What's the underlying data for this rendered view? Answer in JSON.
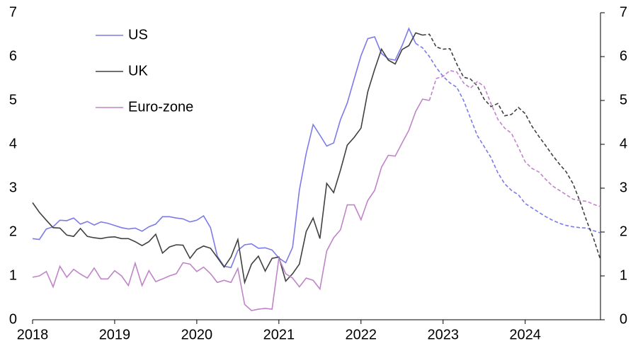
{
  "chart_data": {
    "type": "line",
    "x": [
      2018,
      2018.083,
      2018.167,
      2018.25,
      2018.333,
      2018.417,
      2018.5,
      2018.583,
      2018.667,
      2018.75,
      2018.833,
      2018.917,
      2019,
      2019.083,
      2019.167,
      2019.25,
      2019.333,
      2019.417,
      2019.5,
      2019.583,
      2019.667,
      2019.75,
      2019.833,
      2019.917,
      2020,
      2020.083,
      2020.167,
      2020.25,
      2020.333,
      2020.417,
      2020.5,
      2020.583,
      2020.667,
      2020.75,
      2020.833,
      2020.917,
      2021,
      2021.083,
      2021.167,
      2021.25,
      2021.333,
      2021.417,
      2021.5,
      2021.583,
      2021.667,
      2021.75,
      2021.833,
      2021.917,
      2022,
      2022.083,
      2022.167,
      2022.25,
      2022.333,
      2022.417,
      2022.5,
      2022.583,
      2022.667,
      2022.75,
      2022.833,
      2022.917,
      2023,
      2023.083,
      2023.167,
      2023.25,
      2023.333,
      2023.417,
      2023.5,
      2023.583,
      2023.667,
      2023.75,
      2023.833,
      2023.917,
      2024,
      2024.083,
      2024.167,
      2024.25,
      2024.333,
      2024.417,
      2024.5,
      2024.583,
      2024.667,
      2024.75,
      2024.833,
      2024.917
    ],
    "series": [
      {
        "name": "US",
        "color": "#7b7bea",
        "forecast_from": 2022.667,
        "values": [
          1.85,
          1.83,
          2.07,
          2.12,
          2.27,
          2.26,
          2.32,
          2.18,
          2.24,
          2.16,
          2.23,
          2.2,
          2.15,
          2.1,
          2.07,
          2.09,
          2.02,
          2.12,
          2.18,
          2.35,
          2.35,
          2.32,
          2.3,
          2.23,
          2.27,
          2.37,
          2.1,
          1.45,
          1.22,
          1.19,
          1.58,
          1.71,
          1.73,
          1.63,
          1.64,
          1.59,
          1.41,
          1.3,
          1.65,
          2.96,
          3.79,
          4.45,
          4.21,
          3.96,
          4.03,
          4.56,
          4.94,
          5.49,
          6.02,
          6.41,
          6.45,
          6.07,
          5.95,
          5.92,
          6.25,
          6.64,
          6.3,
          6.2,
          6.0,
          5.75,
          5.55,
          5.4,
          5.3,
          5.0,
          4.6,
          4.2,
          3.95,
          3.7,
          3.35,
          3.1,
          2.95,
          2.85,
          2.65,
          2.55,
          2.45,
          2.35,
          2.27,
          2.2,
          2.15,
          2.12,
          2.1,
          2.09,
          2.03,
          1.98
        ]
      },
      {
        "name": "UK",
        "color": "#404040",
        "forecast_from": 2022.75,
        "values": [
          2.67,
          2.45,
          2.27,
          2.1,
          2.09,
          1.93,
          1.9,
          2.08,
          1.9,
          1.87,
          1.85,
          1.88,
          1.89,
          1.85,
          1.85,
          1.78,
          1.69,
          1.78,
          1.95,
          1.52,
          1.66,
          1.71,
          1.7,
          1.4,
          1.6,
          1.68,
          1.63,
          1.42,
          1.2,
          1.43,
          1.83,
          0.85,
          1.27,
          1.45,
          1.11,
          1.4,
          1.43,
          0.88,
          1.05,
          1.27,
          2.01,
          2.32,
          1.85,
          3.11,
          2.9,
          3.41,
          3.98,
          4.16,
          4.37,
          5.2,
          5.71,
          6.17,
          5.92,
          5.83,
          6.16,
          6.25,
          6.54,
          6.49,
          6.51,
          6.22,
          6.17,
          6.18,
          5.83,
          5.53,
          5.49,
          5.33,
          5.03,
          4.86,
          4.93,
          4.65,
          4.68,
          4.84,
          4.7,
          4.41,
          4.18,
          3.97,
          3.75,
          3.55,
          3.37,
          3.1,
          2.7,
          2.25,
          1.85,
          1.37
        ]
      },
      {
        "name": "Euro-zone",
        "color": "#c084c8",
        "forecast_from": 2022.833,
        "values": [
          0.97,
          1.0,
          1.1,
          0.75,
          1.22,
          0.97,
          1.15,
          1.04,
          0.95,
          1.18,
          0.93,
          0.93,
          1.12,
          1.0,
          0.78,
          1.29,
          0.78,
          1.12,
          0.87,
          0.93,
          1.0,
          1.05,
          1.3,
          1.27,
          1.1,
          1.2,
          1.05,
          0.85,
          0.9,
          0.85,
          1.17,
          0.35,
          0.21,
          0.24,
          0.26,
          0.24,
          1.4,
          1.05,
          0.95,
          0.75,
          0.95,
          0.9,
          0.7,
          1.57,
          1.87,
          2.05,
          2.62,
          2.62,
          2.28,
          2.72,
          2.95,
          3.48,
          3.75,
          3.73,
          4.03,
          4.32,
          4.75,
          5.03,
          5.0,
          5.5,
          5.55,
          5.68,
          5.65,
          5.4,
          5.28,
          5.43,
          5.32,
          4.93,
          4.57,
          4.37,
          4.25,
          3.93,
          3.6,
          3.45,
          3.37,
          3.2,
          3.05,
          2.95,
          2.85,
          2.75,
          2.72,
          2.7,
          2.63,
          2.58
        ]
      }
    ],
    "xlim": [
      2018,
      2024.917
    ],
    "xticks": [
      2018,
      2019,
      2020,
      2021,
      2022,
      2023,
      2024
    ],
    "ylim": [
      0,
      7
    ],
    "yticks": [
      0,
      1,
      2,
      3,
      4,
      5,
      6,
      7
    ],
    "y2lim": [
      0,
      7
    ],
    "y2ticks": [
      0,
      1,
      2,
      3,
      4,
      5,
      6,
      7
    ]
  }
}
